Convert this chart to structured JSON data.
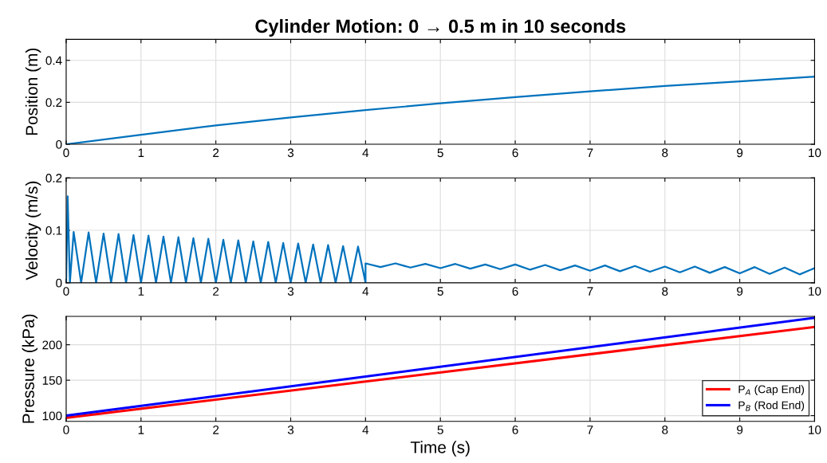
{
  "chart_data": [
    {
      "type": "line",
      "title": "Cylinder Motion: 0 → 0.5 m in 10 seconds",
      "ylabel": "Position (m)",
      "grid": true,
      "series": [
        {
          "color": "#0072bd",
          "x": [
            0,
            1,
            2,
            3,
            4,
            5,
            6,
            7,
            8,
            9,
            10
          ],
          "values": [
            0,
            0.045,
            0.09,
            0.128,
            0.163,
            0.195,
            0.225,
            0.252,
            0.278,
            0.3,
            0.322
          ]
        }
      ],
      "xlim": [
        0,
        10
      ],
      "xticks": [
        0,
        1,
        2,
        3,
        4,
        5,
        6,
        7,
        8,
        9,
        10
      ],
      "ylim": [
        0,
        0.5
      ],
      "yticks": [
        0,
        0.2,
        0.4
      ]
    },
    {
      "type": "line",
      "ylabel": "Velocity (m/s)",
      "grid": true,
      "series": [
        {
          "color": "#0072bd",
          "x": [
            0,
            0.02,
            0.05,
            0.1,
            0.2,
            0.3,
            0.4,
            0.5,
            0.6,
            0.7,
            0.8,
            0.9,
            1.0,
            1.1,
            1.2,
            1.3,
            1.4,
            1.5,
            1.6,
            1.7,
            1.8,
            1.9,
            2.0,
            2.1,
            2.2,
            2.3,
            2.4,
            2.5,
            2.6,
            2.7,
            2.8,
            2.9,
            3.0,
            3.1,
            3.2,
            3.3,
            3.4,
            3.5,
            3.6,
            3.7,
            3.8,
            3.9,
            4.0,
            4.0,
            4.2,
            4.4,
            4.6,
            4.8,
            5.0,
            5.2,
            5.4,
            5.6,
            5.8,
            6.0,
            6.2,
            6.4,
            6.6,
            6.8,
            7.0,
            7.2,
            7.4,
            7.6,
            7.8,
            8.0,
            8.2,
            8.4,
            8.6,
            8.8,
            9.0,
            9.2,
            9.4,
            9.6,
            9.8,
            10.0
          ],
          "values": [
            0,
            0.165,
            0,
            0.097,
            0,
            0.096,
            0,
            0.094,
            0,
            0.093,
            0,
            0.091,
            0,
            0.09,
            0,
            0.088,
            0,
            0.087,
            0,
            0.085,
            0,
            0.084,
            0,
            0.082,
            0,
            0.081,
            0,
            0.079,
            0,
            0.078,
            0,
            0.076,
            0,
            0.075,
            0,
            0.073,
            0,
            0.072,
            0,
            0.07,
            0,
            0.069,
            0,
            0.037,
            0.03,
            0.037,
            0.029,
            0.036,
            0.028,
            0.036,
            0.027,
            0.035,
            0.026,
            0.035,
            0.025,
            0.034,
            0.024,
            0.033,
            0.023,
            0.033,
            0.022,
            0.032,
            0.021,
            0.031,
            0.02,
            0.031,
            0.019,
            0.03,
            0.018,
            0.03,
            0.017,
            0.029,
            0.016,
            0.028
          ]
        }
      ],
      "xlim": [
        0,
        10
      ],
      "xticks": [
        0,
        1,
        2,
        3,
        4,
        5,
        6,
        7,
        8,
        9,
        10
      ],
      "ylim": [
        0,
        0.2
      ],
      "yticks": [
        0,
        0.1,
        0.2
      ]
    },
    {
      "type": "line",
      "xlabel": "Time (s)",
      "ylabel": "Pressure (kPa)",
      "grid": true,
      "legend": "bottom right",
      "series": [
        {
          "name": "P$_{A}$ (Cap End)",
          "color": "#ff0000",
          "x": [
            0,
            10
          ],
          "values": [
            97,
            225
          ]
        },
        {
          "name": "P$_{B}$ (Rod End)",
          "color": "#0000ff",
          "x": [
            0,
            10
          ],
          "values": [
            100,
            238
          ]
        }
      ],
      "xlim": [
        0,
        10
      ],
      "xticks": [
        0,
        1,
        2,
        3,
        4,
        5,
        6,
        7,
        8,
        9,
        10
      ],
      "ylim": [
        92,
        240
      ],
      "yticks": [
        100,
        150,
        200
      ]
    }
  ]
}
